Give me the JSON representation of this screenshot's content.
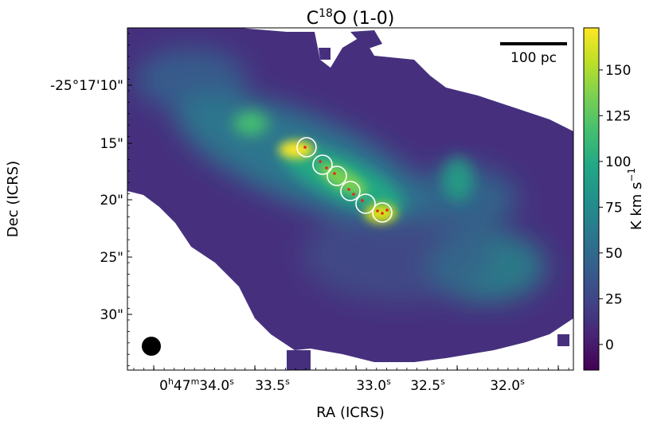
{
  "chart_data": {
    "type": "heatmap",
    "title": "C<sup>18</sup>O (1-0)",
    "title_main": "C",
    "title_sup": "18",
    "title_rest": "O (1-0)",
    "xlabel": "RA (ICRS)",
    "ylabel": "Dec (ICRS)",
    "x_ticks": [
      {
        "h": "0",
        "m": "47",
        "s": "34.0",
        "label_sup_h": "h",
        "label_sup_m": "m",
        "label_sup_s": "s",
        "pos": 34.0
      },
      {
        "s": "33.5",
        "label_sup_s": "s",
        "pos": 33.5
      },
      {
        "s": "33.0",
        "label_sup_s": "s",
        "pos": 33.0
      },
      {
        "s": "32.5",
        "label_sup_s": "s",
        "pos": 32.5
      },
      {
        "s": "32.0",
        "label_sup_s": "s",
        "pos": 32.0
      }
    ],
    "x_tick_labels": [
      "0h47m34.0s",
      "33.5s",
      "33.0s",
      "32.5s",
      "32.0s"
    ],
    "y_tick_labels": [
      "-25°17'10\"",
      "15\"",
      "20\"",
      "25\"",
      "30\""
    ],
    "y_tick_values_arcsec": [
      10,
      15,
      20,
      25,
      30
    ],
    "xlim_ra_seconds": [
      34.25,
      31.6
    ],
    "ylim_dec_arcsec": [
      5.0,
      34.9
    ],
    "colorbar": {
      "label": "K km s",
      "label_sup": "−1",
      "colormap": "viridis",
      "range": [
        -14,
        173
      ],
      "ticks": [
        "0",
        "25",
        "50",
        "75",
        "100",
        "125",
        "150"
      ],
      "tick_values": [
        0,
        25,
        50,
        75,
        100,
        125,
        150
      ]
    },
    "scale_bar_label": "100 pc",
    "beam": "filled black circle, lower-left",
    "emission_peaks": [
      {
        "ra_s": 33.28,
        "dec_arcsec": 15.8,
        "intensity": 172
      },
      {
        "ra_s": 33.62,
        "dec_arcsec": 13.5,
        "intensity": 80
      },
      {
        "ra_s": 33.1,
        "dec_arcsec": 17.5,
        "intensity": 140
      },
      {
        "ra_s": 32.95,
        "dec_arcsec": 19.6,
        "intensity": 130
      },
      {
        "ra_s": 32.8,
        "dec_arcsec": 21.0,
        "intensity": 160
      },
      {
        "ra_s": 32.3,
        "dec_arcsec": 19.8,
        "intensity": 70
      },
      {
        "ra_s": 32.05,
        "dec_arcsec": 26.0,
        "intensity": 60
      },
      {
        "ra_s": 33.9,
        "dec_arcsec": 9.5,
        "intensity": 40
      }
    ],
    "circle_markers": [
      {
        "ra_s": 33.245,
        "dec_arcsec": 15.6
      },
      {
        "ra_s": 33.155,
        "dec_arcsec": 16.8
      },
      {
        "ra_s": 33.08,
        "dec_arcsec": 18.0
      },
      {
        "ra_s": 32.98,
        "dec_arcsec": 19.2
      },
      {
        "ra_s": 32.9,
        "dec_arcsec": 20.0
      },
      {
        "ra_s": 32.8,
        "dec_arcsec": 21.3
      }
    ],
    "red_points": [
      {
        "ra_s": 33.265,
        "dec_arcsec": 15.5
      },
      {
        "ra_s": 33.18,
        "dec_arcsec": 16.5
      },
      {
        "ra_s": 33.15,
        "dec_arcsec": 17.2
      },
      {
        "ra_s": 33.1,
        "dec_arcsec": 18.0
      },
      {
        "ra_s": 33.0,
        "dec_arcsec": 19.2
      },
      {
        "ra_s": 32.97,
        "dec_arcsec": 19.5
      },
      {
        "ra_s": 32.93,
        "dec_arcsec": 19.9
      },
      {
        "ra_s": 32.84,
        "dec_arcsec": 21.0
      },
      {
        "ra_s": 32.81,
        "dec_arcsec": 21.2
      },
      {
        "ra_s": 32.78,
        "dec_arcsec": 21.0
      }
    ],
    "colors": {
      "masked_background": "#ffffff",
      "marker_circle": "#ffffff",
      "marker_point": "#e8221f",
      "beam": "#000000"
    }
  }
}
